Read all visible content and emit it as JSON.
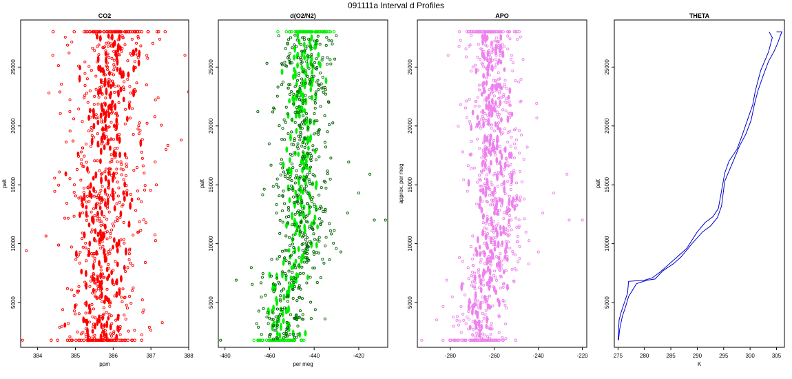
{
  "figure_title": "091111a   Interval d Profiles",
  "chart_data": [
    {
      "type": "scatter",
      "title": "CO2",
      "xlabel": "ppm",
      "ylabel": "palt",
      "xlim": [
        383.55,
        388.0
      ],
      "ylim": [
        1200,
        29000
      ],
      "xticks": [
        384,
        385,
        386,
        387,
        388
      ],
      "yticks": [
        5000,
        10000,
        15000,
        20000,
        25000
      ],
      "color": "#ff0000",
      "center_by_altitude": [
        [
          1800,
          385.7
        ],
        [
          8000,
          385.7
        ],
        [
          16000,
          385.75
        ],
        [
          22000,
          385.9
        ],
        [
          28000,
          386.0
        ]
      ],
      "spread": 0.55,
      "outliers": [
        [
          383.6,
          1800
        ],
        [
          383.7,
          9400
        ],
        [
          384.4,
          26000
        ],
        [
          384.3,
          22800
        ],
        [
          387.9,
          26000
        ],
        [
          388.0,
          22900
        ],
        [
          387.8,
          18800
        ],
        [
          387.4,
          18000
        ],
        [
          387.3,
          3300
        ]
      ]
    },
    {
      "type": "scatter",
      "title": "d(O2/N2)",
      "xlabel": "per meg",
      "ylabel": "palt",
      "xlim": [
        -483,
        -407
      ],
      "ylim": [
        1200,
        29000
      ],
      "xticks": [
        -480,
        -460,
        -440,
        -420
      ],
      "yticks": [
        5000,
        10000,
        15000,
        20000,
        25000
      ],
      "color": "#00ee00",
      "center_by_altitude": [
        [
          1800,
          -455
        ],
        [
          6000,
          -452
        ],
        [
          10000,
          -445
        ],
        [
          14000,
          -446
        ],
        [
          20000,
          -446
        ],
        [
          25000,
          -444
        ],
        [
          28000,
          -444
        ]
      ],
      "spread": 6.5,
      "outliers": [
        [
          -482,
          1800
        ],
        [
          -475,
          6900
        ],
        [
          -413,
          12000
        ],
        [
          -408,
          12000
        ],
        [
          -415,
          15900
        ],
        [
          -425,
          12600
        ],
        [
          -420,
          14300
        ],
        [
          -428,
          9300
        ]
      ]
    },
    {
      "type": "scatter",
      "title": "APO",
      "xlabel": "",
      "ylabel": "approx. per meg",
      "xlim": [
        -295,
        -218
      ],
      "ylim": [
        1200,
        29000
      ],
      "xticks": [
        -280,
        -260,
        -240,
        -220
      ],
      "yticks": [
        5000,
        10000,
        15000,
        20000,
        25000
      ],
      "color": "#ee82ee",
      "center_by_altitude": [
        [
          1800,
          -268
        ],
        [
          6000,
          -266
        ],
        [
          10000,
          -259
        ],
        [
          14000,
          -258
        ],
        [
          20000,
          -260
        ],
        [
          25000,
          -260
        ],
        [
          28000,
          -263
        ]
      ],
      "spread": 6.5,
      "outliers": [
        [
          -293,
          1800
        ],
        [
          -281,
          26000
        ],
        [
          -226,
          12000
        ],
        [
          -220,
          12000
        ],
        [
          -227,
          15900
        ],
        [
          -238,
          12600
        ],
        [
          -233,
          14300
        ],
        [
          -240,
          9300
        ]
      ]
    },
    {
      "type": "line",
      "title": "THETA",
      "xlabel": "K",
      "ylabel": "palt",
      "xlim": [
        274.3,
        306.5
      ],
      "ylim": [
        1200,
        29000
      ],
      "xticks": [
        275,
        280,
        285,
        290,
        295,
        300,
        305
      ],
      "yticks": [
        5000,
        10000,
        15000,
        20000,
        25000
      ],
      "color": "#0000cc",
      "series": [
        {
          "x": [
            275.0,
            275.1,
            275.2,
            275.6,
            276.2,
            276.8,
            277.0,
            280.0,
            281.5,
            283.0,
            285.0,
            288.0,
            290.0,
            291.5,
            293.0,
            294.0,
            294.8,
            295.2,
            296.0,
            297.5,
            298.5,
            299.5,
            300.5,
            301.0,
            302.0,
            303.5,
            304.2,
            303.6
          ],
          "y": [
            1800,
            2500,
            3500,
            4200,
            5000,
            5800,
            6800,
            6900,
            7100,
            7600,
            8400,
            9600,
            11000,
            11800,
            12300,
            13000,
            15000,
            16000,
            17000,
            18000,
            19200,
            20500,
            21800,
            23000,
            24700,
            26300,
            27500,
            28000
          ]
        },
        {
          "x": [
            275.1,
            275.3,
            275.8,
            276.4,
            277.0,
            278.5,
            280.5,
            282.0,
            283.5,
            285.5,
            287.0,
            289.0,
            291.0,
            292.5,
            293.8,
            294.6,
            295.2,
            296.8,
            298.0,
            299.2,
            300.2,
            300.8,
            301.5,
            302.5,
            303.5,
            304.5,
            305.2,
            306.0,
            305.0
          ],
          "y": [
            1800,
            2700,
            3800,
            4600,
            5500,
            6600,
            6900,
            7000,
            7700,
            8300,
            8900,
            10000,
            11000,
            11500,
            12200,
            13200,
            15300,
            17000,
            18300,
            19300,
            20500,
            21800,
            23000,
            24300,
            25500,
            26300,
            27000,
            28000,
            28000
          ]
        }
      ]
    }
  ]
}
